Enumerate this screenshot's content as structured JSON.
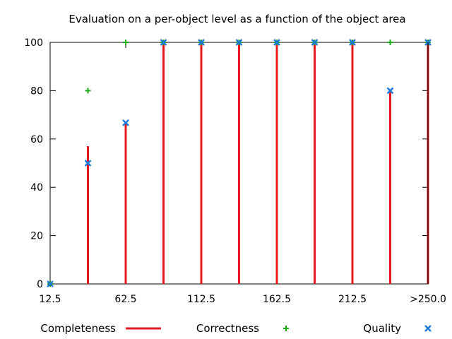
{
  "chart_data": {
    "type": "bar",
    "title": "Evaluation on a per-object level as a function of the object area",
    "xlabel": "",
    "ylabel": "",
    "xlim": [
      12.5,
      262.5
    ],
    "ylim": [
      0,
      100
    ],
    "y_ticks": [
      0,
      20,
      40,
      60,
      80,
      100
    ],
    "x_ticks": [
      {
        "value": 12.5,
        "label": "12.5"
      },
      {
        "value": 62.5,
        "label": "62.5"
      },
      {
        "value": 112.5,
        "label": "112.5"
      },
      {
        "value": 162.5,
        "label": "162.5"
      },
      {
        "value": 212.5,
        "label": "212.5"
      },
      {
        "value": 262.5,
        "label": ">250.0"
      }
    ],
    "grid": false,
    "legend_position": "bottom",
    "x": [
      12.5,
      37.5,
      62.5,
      87.5,
      112.5,
      137.5,
      162.5,
      187.5,
      212.5,
      237.5,
      262.5
    ],
    "series": [
      {
        "name": "Completeness",
        "kind": "impulse",
        "color": "#e41a1c",
        "values": [
          0,
          57,
          67,
          100,
          100,
          100,
          100,
          100,
          100,
          80,
          100
        ]
      },
      {
        "name": "Correctness",
        "kind": "plus",
        "color": "#1aaa1a",
        "values": [
          0,
          80,
          100,
          100,
          100,
          100,
          100,
          100,
          100,
          100,
          100
        ]
      },
      {
        "name": "Quality",
        "kind": "cross",
        "color": "#1f78d8",
        "values": [
          0,
          50,
          66.7,
          100,
          100,
          100,
          100,
          100,
          100,
          80,
          100
        ]
      }
    ]
  }
}
